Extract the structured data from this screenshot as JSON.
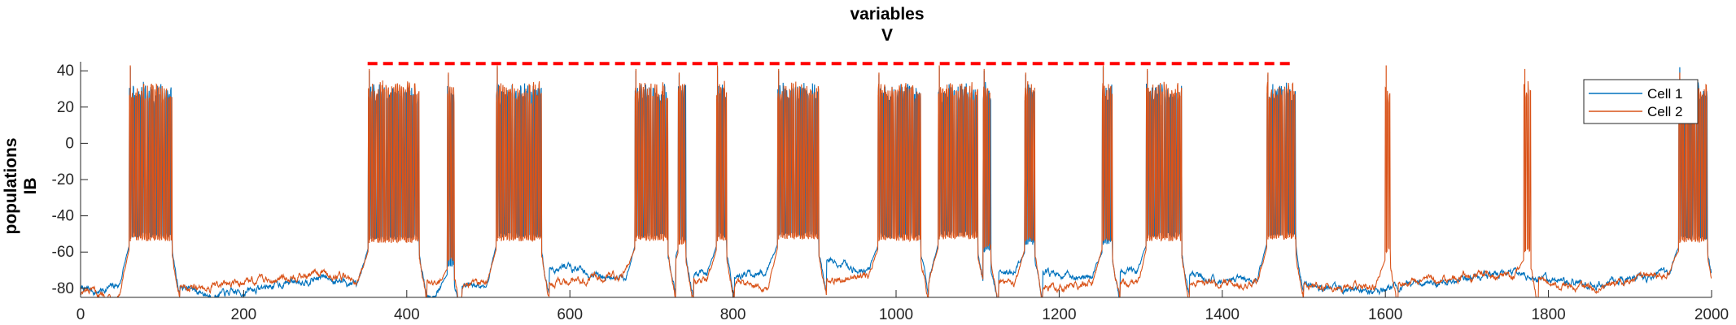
{
  "chart_data": {
    "type": "line",
    "title": [
      "variables",
      "V"
    ],
    "ylabel": [
      "populations",
      "IB"
    ],
    "xlabel": "",
    "xlim": [
      0,
      2000
    ],
    "ylim": [
      -85,
      45
    ],
    "xticks": [
      0,
      200,
      400,
      600,
      800,
      1000,
      1200,
      1400,
      1600,
      1800,
      2000
    ],
    "yticks": [
      -80,
      -60,
      -40,
      -20,
      0,
      20,
      40
    ],
    "grid": false,
    "legend": {
      "placement": "top-right"
    },
    "series": [
      {
        "name": "Cell 1",
        "color": "#0072BD",
        "baseline": [
          [
            0,
            -80
          ],
          [
            20,
            -82
          ],
          [
            60,
            -76
          ],
          [
            120,
            -78
          ],
          [
            160,
            -84
          ],
          [
            200,
            -82
          ],
          [
            260,
            -76
          ],
          [
            300,
            -74
          ],
          [
            340,
            -78
          ],
          [
            380,
            -82
          ],
          [
            420,
            -84
          ],
          [
            460,
            -80
          ],
          [
            500,
            -78
          ],
          [
            560,
            -70
          ],
          [
            600,
            -68
          ],
          [
            640,
            -74
          ],
          [
            700,
            -76
          ],
          [
            760,
            -72
          ],
          [
            800,
            -74
          ],
          [
            860,
            -70
          ],
          [
            920,
            -66
          ],
          [
            980,
            -72
          ],
          [
            1040,
            -76
          ],
          [
            1100,
            -72
          ],
          [
            1160,
            -70
          ],
          [
            1220,
            -74
          ],
          [
            1280,
            -70
          ],
          [
            1340,
            -72
          ],
          [
            1400,
            -76
          ],
          [
            1460,
            -74
          ],
          [
            1520,
            -80
          ],
          [
            1580,
            -82
          ],
          [
            1640,
            -78
          ],
          [
            1700,
            -74
          ],
          [
            1760,
            -72
          ],
          [
            1800,
            -76
          ],
          [
            1860,
            -78
          ],
          [
            1920,
            -74
          ],
          [
            1960,
            -70
          ],
          [
            2000,
            -82
          ]
        ],
        "bursts": [
          [
            60,
            112,
            -52
          ],
          [
            353,
            415,
            -53
          ],
          [
            450,
            458,
            -68
          ],
          [
            510,
            565,
            -52
          ],
          [
            680,
            720,
            -52
          ],
          [
            733,
            742,
            -54
          ],
          [
            780,
            792,
            -52
          ],
          [
            855,
            905,
            -51
          ],
          [
            978,
            1030,
            -52
          ],
          [
            1052,
            1100,
            -51
          ],
          [
            1107,
            1116,
            -60
          ],
          [
            1158,
            1170,
            -56
          ],
          [
            1253,
            1265,
            -56
          ],
          [
            1307,
            1350,
            -52
          ],
          [
            1455,
            1490,
            -51
          ],
          [
            1960,
            1995,
            -53
          ]
        ],
        "spike_peak": 42
      },
      {
        "name": "Cell 2",
        "color": "#D95319",
        "baseline": [
          [
            0,
            -82
          ],
          [
            40,
            -84
          ],
          [
            80,
            -78
          ],
          [
            140,
            -80
          ],
          [
            180,
            -78
          ],
          [
            240,
            -74
          ],
          [
            300,
            -72
          ],
          [
            330,
            -74
          ],
          [
            380,
            -78
          ],
          [
            420,
            -76
          ],
          [
            470,
            -80
          ],
          [
            500,
            -76
          ],
          [
            560,
            -80
          ],
          [
            600,
            -76
          ],
          [
            660,
            -72
          ],
          [
            700,
            -70
          ],
          [
            760,
            -76
          ],
          [
            820,
            -78
          ],
          [
            880,
            -80
          ],
          [
            940,
            -74
          ],
          [
            1000,
            -72
          ],
          [
            1060,
            -78
          ],
          [
            1120,
            -76
          ],
          [
            1200,
            -80
          ],
          [
            1260,
            -74
          ],
          [
            1300,
            -80
          ],
          [
            1360,
            -76
          ],
          [
            1420,
            -78
          ],
          [
            1480,
            -76
          ],
          [
            1540,
            -80
          ],
          [
            1600,
            -78
          ],
          [
            1660,
            -76
          ],
          [
            1720,
            -72
          ],
          [
            1780,
            -74
          ],
          [
            1840,
            -80
          ],
          [
            1900,
            -76
          ],
          [
            1960,
            -70
          ],
          [
            2000,
            -80
          ]
        ],
        "bursts": [
          [
            60,
            112,
            -54
          ],
          [
            353,
            415,
            -55
          ],
          [
            450,
            458,
            -65
          ],
          [
            510,
            565,
            -54
          ],
          [
            680,
            720,
            -54
          ],
          [
            733,
            742,
            -56
          ],
          [
            780,
            792,
            -54
          ],
          [
            855,
            905,
            -53
          ],
          [
            978,
            1030,
            -54
          ],
          [
            1052,
            1100,
            -53
          ],
          [
            1107,
            1116,
            -58
          ],
          [
            1158,
            1170,
            -54
          ],
          [
            1253,
            1265,
            -54
          ],
          [
            1307,
            1350,
            -54
          ],
          [
            1455,
            1490,
            -53
          ],
          [
            1600,
            1606,
            -60
          ],
          [
            1770,
            1778,
            -60
          ],
          [
            1960,
            1995,
            -55
          ]
        ],
        "spike_peak": 43
      }
    ],
    "reference_line": {
      "y": 44,
      "x": [
        352,
        1485
      ],
      "color": "#FF0000",
      "style": "dashed"
    }
  }
}
